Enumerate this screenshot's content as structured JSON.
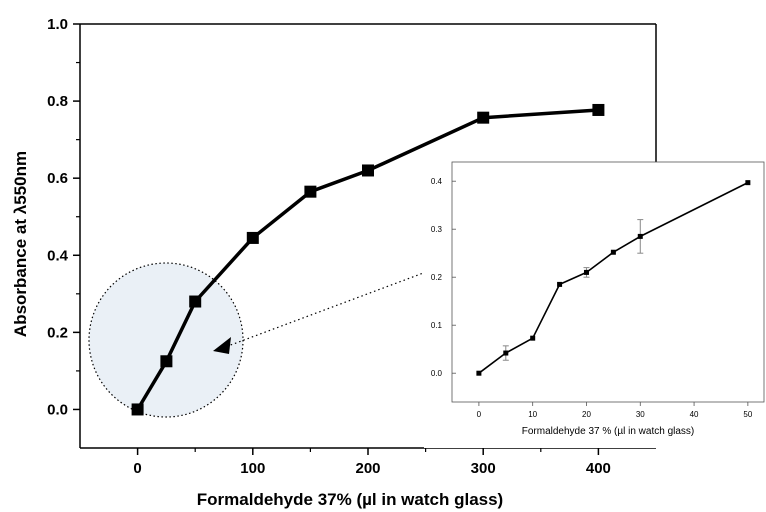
{
  "chart_data": [
    {
      "type": "line",
      "title": "",
      "xlabel": "Formaldehyde 37% (µl in watch glass)",
      "ylabel": "Absorbance at λ550nm",
      "xlim": [
        -50,
        450
      ],
      "ylim": [
        -0.1,
        1.0
      ],
      "xticks": [
        0,
        100,
        200,
        300,
        400
      ],
      "yticks": [
        0.0,
        0.2,
        0.4,
        0.6,
        0.8,
        1.0
      ],
      "xtick_labels": [
        "0",
        "100",
        "200",
        "300",
        "400"
      ],
      "ytick_labels": [
        "0.0",
        "0.2",
        "0.4",
        "0.6",
        "0.8",
        "1.0"
      ],
      "grid": false,
      "series": [
        {
          "x": [
            0,
            25,
            50,
            100,
            150,
            200,
            300,
            400
          ],
          "y": [
            0.0,
            0.125,
            0.28,
            0.445,
            0.565,
            0.62,
            0.757,
            0.777
          ],
          "marker": "square",
          "color": "#000000"
        }
      ],
      "annotation": "dotted circle around x 0-50 with arrow to inset"
    },
    {
      "type": "line",
      "title": "",
      "xlabel": "Formaldehyde 37 % (µl in watch glass)",
      "ylabel": "",
      "xlim": [
        -5,
        53
      ],
      "ylim": [
        -0.06,
        0.44
      ],
      "xticks": [
        0,
        10,
        20,
        30,
        40,
        50
      ],
      "yticks": [
        0.0,
        0.1,
        0.2,
        0.3,
        0.4
      ],
      "xtick_labels": [
        "0",
        "10",
        "20",
        "30",
        "40",
        "50"
      ],
      "ytick_labels": [
        "0.0",
        "0.1",
        "0.2",
        "0.3",
        "0.4"
      ],
      "grid": false,
      "series": [
        {
          "x": [
            0,
            5,
            10,
            15,
            20,
            25,
            30,
            50
          ],
          "y": [
            0.0,
            0.042,
            0.073,
            0.185,
            0.21,
            0.252,
            0.285,
            0.397
          ],
          "error": [
            0.0,
            0.015,
            0.0,
            0.0,
            0.01,
            0.0,
            0.035,
            0.0
          ],
          "marker": "square",
          "color": "#000000"
        }
      ]
    }
  ]
}
